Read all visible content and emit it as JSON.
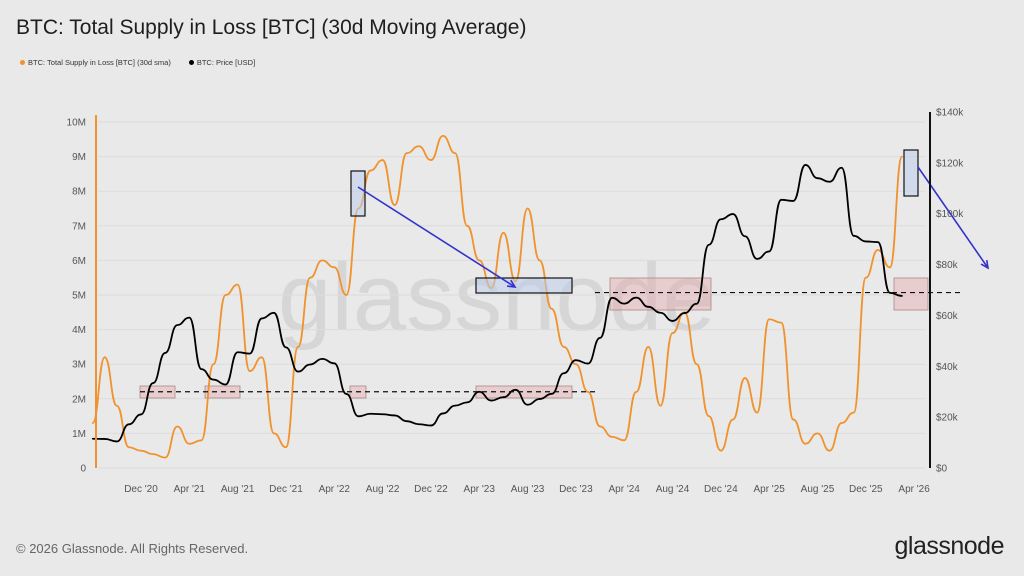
{
  "title": "BTC: Total Supply in Loss [BTC] (30d Moving Average)",
  "legend": [
    {
      "label": "BTC: Total Supply in Loss [BTC] (30d sma)",
      "color": "#f0922e"
    },
    {
      "label": "BTC: Price [USD]",
      "color": "#000000"
    }
  ],
  "watermark": "glassnode",
  "footer": "© 2026 Glassnode. All Rights Reserved.",
  "logo": "glassnode",
  "chart_data": {
    "type": "line",
    "title": "BTC: Total Supply in Loss [BTC] (30d Moving Average)",
    "x_ticks": [
      "Dec '20",
      "Apr '21",
      "Aug '21",
      "Dec '21",
      "Apr '22",
      "Aug '22",
      "Dec '22",
      "Apr '23",
      "Aug '23",
      "Dec '23",
      "Apr '24",
      "Aug '24",
      "Dec '24",
      "Apr '25",
      "Aug '25",
      "Dec '25",
      "Apr '26"
    ],
    "y_left_ticks": [
      "0",
      "1M",
      "2M",
      "3M",
      "4M",
      "5M",
      "6M",
      "7M",
      "8M",
      "9M",
      "10M"
    ],
    "y_right_ticks": [
      "$0",
      "$20k",
      "$40k",
      "$60k",
      "$80k",
      "$100k",
      "$120k",
      "$140k"
    ],
    "y_left_range": [
      0,
      10000000
    ],
    "y_right_range": [
      0,
      140000
    ],
    "grid": true,
    "legend_placement": "top-left",
    "x": [
      "2020-08",
      "2020-09",
      "2020-10",
      "2020-11",
      "2020-12",
      "2021-01",
      "2021-02",
      "2021-03",
      "2021-04",
      "2021-05",
      "2021-06",
      "2021-07",
      "2021-08",
      "2021-09",
      "2021-10",
      "2021-11",
      "2021-12",
      "2022-01",
      "2022-02",
      "2022-03",
      "2022-04",
      "2022-05",
      "2022-06",
      "2022-07",
      "2022-08",
      "2022-09",
      "2022-10",
      "2022-11",
      "2022-12",
      "2023-01",
      "2023-02",
      "2023-03",
      "2023-04",
      "2023-05",
      "2023-06",
      "2023-07",
      "2023-08",
      "2023-09",
      "2023-10",
      "2023-11",
      "2023-12",
      "2024-01",
      "2024-02",
      "2024-03",
      "2024-04",
      "2024-05",
      "2024-06",
      "2024-07",
      "2024-08",
      "2024-09",
      "2024-10",
      "2024-11",
      "2024-12",
      "2025-01",
      "2025-02",
      "2025-03",
      "2025-04",
      "2025-05",
      "2025-06",
      "2025-07",
      "2025-08",
      "2025-09",
      "2025-10",
      "2025-11",
      "2025-12",
      "2026-01",
      "2026-02",
      "2026-03"
    ],
    "series": [
      {
        "name": "BTC: Total Supply in Loss [BTC] (30d sma)",
        "axis": "left",
        "color": "#f0922e",
        "values": [
          1300000,
          3200000,
          1800000,
          600000,
          500000,
          400000,
          300000,
          1200000,
          700000,
          800000,
          3000000,
          5000000,
          5300000,
          2800000,
          3200000,
          1000000,
          600000,
          3500000,
          5500000,
          6000000,
          5800000,
          5000000,
          7500000,
          8600000,
          8900000,
          7600000,
          9100000,
          9300000,
          8900000,
          9600000,
          9100000,
          7000000,
          6000000,
          5200000,
          6800000,
          5400000,
          7500000,
          6000000,
          4600000,
          3500000,
          3000000,
          2200000,
          1200000,
          900000,
          800000,
          2200000,
          3500000,
          1800000,
          3900000,
          4500000,
          3000000,
          1500000,
          500000,
          1400000,
          2600000,
          1600000,
          4300000,
          4200000,
          1400000,
          700000,
          1000000,
          500000,
          1300000,
          1600000,
          5500000,
          6300000,
          5800000,
          9000000
        ]
      },
      {
        "name": "BTC: Price [USD]",
        "axis": "right",
        "color": "#000000",
        "values": [
          11500,
          10800,
          11500,
          16000,
          22000,
          33000,
          45000,
          57000,
          58000,
          40000,
          34000,
          33000,
          46000,
          44000,
          60000,
          60000,
          48000,
          38000,
          40000,
          44000,
          40000,
          30000,
          20000,
          21000,
          22000,
          19500,
          19500,
          16500,
          16800,
          22000,
          23500,
          27000,
          29000,
          27000,
          28000,
          30000,
          26000,
          26000,
          30000,
          37000,
          42000,
          42000,
          50000,
          68000,
          64000,
          67000,
          64000,
          60000,
          59000,
          60000,
          65000,
          88000,
          97000,
          101000,
          90000,
          83000,
          85000,
          105000,
          106000,
          118000,
          115000,
          112000,
          118000,
          92000,
          88000,
          90000,
          68000,
          68000
        ]
      }
    ],
    "reference_lines": [
      {
        "axis": "right",
        "value": 30000,
        "style": "dashed"
      },
      {
        "axis": "right",
        "value": 69000,
        "style": "dashed"
      }
    ]
  }
}
